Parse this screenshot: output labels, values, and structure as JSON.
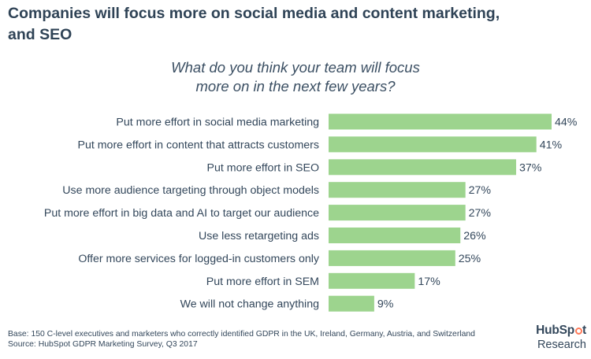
{
  "header": {
    "title_line1": "Companies will focus more on social media and content marketing,",
    "title_line2": "and SEO"
  },
  "question": {
    "line1": "What do you think your team will focus",
    "line2": "more on in the next few years?"
  },
  "colors": {
    "bar": "#9dd48e",
    "text": "#33475b",
    "accent": "#ff7a59"
  },
  "chart_data": {
    "type": "bar",
    "orientation": "horizontal",
    "title": "What do you think your team will focus more on in the next few years?",
    "categories": [
      "Put more effort in social media marketing",
      "Put more effort in content that attracts customers",
      "Put more effort in SEO",
      "Use more audience targeting through object models",
      "Put more effort in big data and AI to target our audience",
      "Use less retargeting ads",
      "Offer more services for logged-in customers only",
      "Put more effort in SEM",
      "We will not change anything"
    ],
    "values": [
      44,
      41,
      37,
      27,
      27,
      26,
      25,
      17,
      9
    ],
    "value_labels": [
      "44%",
      "41%",
      "37%",
      "27%",
      "27%",
      "26%",
      "25%",
      "17%",
      "9%"
    ],
    "unit": "%",
    "xlim": [
      0,
      44
    ],
    "xlabel": "",
    "ylabel": "",
    "grid": false
  },
  "footer": {
    "base": "Base: 150 C-level executives and marketers who correctly identified GDPR in the UK, Ireland, Germany, Austria, and Switzerland",
    "source": "Source: HubSpot GDPR Marketing Survey, Q3 2017"
  },
  "logo": {
    "brand_part1": "HubSp",
    "brand_part2": "t",
    "sub": "Research"
  }
}
